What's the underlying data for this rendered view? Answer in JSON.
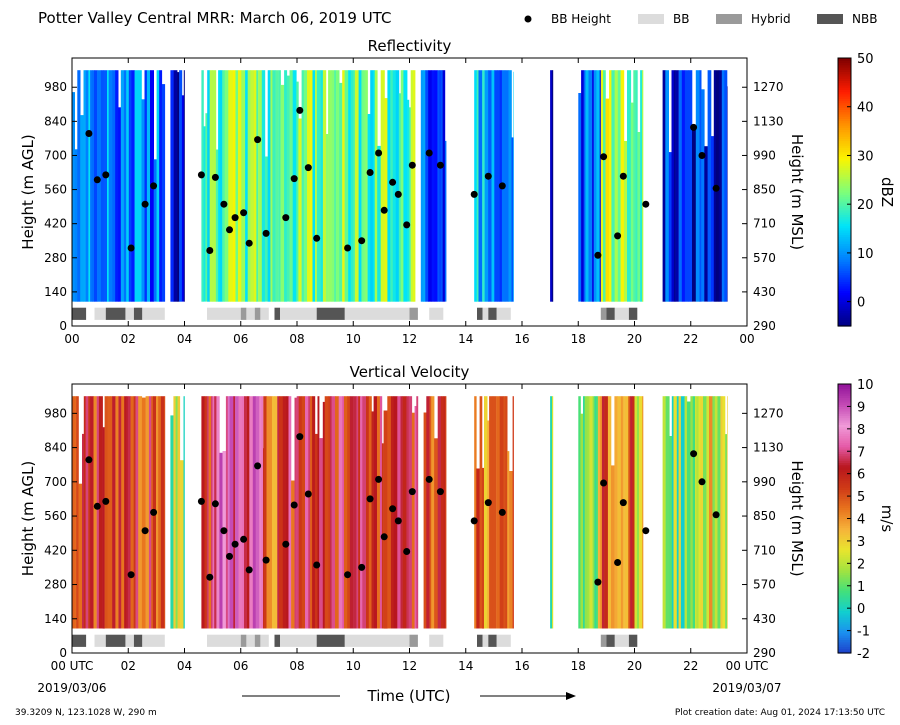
{
  "header": {
    "title": "Potter Valley Central MRR:  March 06, 2019 UTC",
    "legend": [
      {
        "label": "BB Height",
        "swatch": "dot",
        "color": "#000000"
      },
      {
        "label": "BB",
        "swatch": "box",
        "color": "#dcdcdc"
      },
      {
        "label": "Hybrid",
        "swatch": "box",
        "color": "#9a9a9a"
      },
      {
        "label": "NBB",
        "swatch": "box",
        "color": "#555555"
      }
    ]
  },
  "footer": {
    "location": "39.3209 N, 123.1028 W, 290 m",
    "creation": "Plot creation date: Aug 01, 2024 17:13:50 UTC",
    "xlabel": "Time (UTC)",
    "start_date": "2019/03/06",
    "end_date": "2019/03/07"
  },
  "chart_data": [
    {
      "type": "heatmap",
      "title": "Reflectivity",
      "ylabel": "Height (m AGL)",
      "ylabel_right": "Height (m MSL)",
      "colorbar": {
        "label": "dBZ",
        "range": [
          -5,
          50
        ],
        "ticks": [
          0,
          10,
          20,
          30,
          40,
          50
        ],
        "colors": [
          "#00007f",
          "#0000ff",
          "#0080ff",
          "#00e4f8",
          "#7dff7a",
          "#faf500",
          "#ff9400",
          "#ff1d00",
          "#7f0000"
        ]
      },
      "x_ticks": [
        "00",
        "02",
        "04",
        "06",
        "08",
        "10",
        "12",
        "14",
        "16",
        "18",
        "20",
        "22",
        "00"
      ],
      "xlim": [
        0,
        24
      ],
      "ylim": [
        0,
        1100
      ],
      "y_ticks": [
        0,
        140,
        280,
        420,
        560,
        700,
        840,
        980
      ],
      "y_ticks_right": [
        290,
        430,
        570,
        710,
        850,
        990,
        1130,
        1270
      ],
      "segments": [
        {
          "start": 0.0,
          "end": 3.3,
          "level": 9
        },
        {
          "start": 3.5,
          "end": 4.0,
          "level": 1
        },
        {
          "start": 4.6,
          "end": 12.2,
          "level": 22
        },
        {
          "start": 12.4,
          "end": 13.3,
          "level": 7
        },
        {
          "start": 14.3,
          "end": 15.7,
          "level": 12
        },
        {
          "start": 17.0,
          "end": 17.1,
          "level": 2
        },
        {
          "start": 18.0,
          "end": 18.8,
          "level": 6
        },
        {
          "start": 18.8,
          "end": 20.3,
          "level": 24
        },
        {
          "start": 21.0,
          "end": 21.4,
          "level": 3
        },
        {
          "start": 21.4,
          "end": 23.3,
          "level": 2
        }
      ],
      "bb_height": [
        {
          "x": 0.6,
          "y": 790
        },
        {
          "x": 0.9,
          "y": 600
        },
        {
          "x": 1.2,
          "y": 620
        },
        {
          "x": 2.1,
          "y": 320
        },
        {
          "x": 2.6,
          "y": 500
        },
        {
          "x": 2.9,
          "y": 575
        },
        {
          "x": 4.6,
          "y": 620
        },
        {
          "x": 4.9,
          "y": 310
        },
        {
          "x": 5.1,
          "y": 610
        },
        {
          "x": 5.4,
          "y": 500
        },
        {
          "x": 5.6,
          "y": 395
        },
        {
          "x": 5.8,
          "y": 445
        },
        {
          "x": 6.1,
          "y": 465
        },
        {
          "x": 6.3,
          "y": 340
        },
        {
          "x": 6.6,
          "y": 765
        },
        {
          "x": 6.9,
          "y": 380
        },
        {
          "x": 7.6,
          "y": 445
        },
        {
          "x": 7.9,
          "y": 605
        },
        {
          "x": 8.1,
          "y": 885
        },
        {
          "x": 8.4,
          "y": 650
        },
        {
          "x": 8.7,
          "y": 360
        },
        {
          "x": 9.8,
          "y": 320
        },
        {
          "x": 10.3,
          "y": 350
        },
        {
          "x": 10.6,
          "y": 630
        },
        {
          "x": 10.9,
          "y": 710
        },
        {
          "x": 11.1,
          "y": 475
        },
        {
          "x": 11.4,
          "y": 590
        },
        {
          "x": 11.6,
          "y": 540
        },
        {
          "x": 11.9,
          "y": 415
        },
        {
          "x": 12.1,
          "y": 660
        },
        {
          "x": 12.7,
          "y": 710
        },
        {
          "x": 13.1,
          "y": 660
        },
        {
          "x": 14.3,
          "y": 540
        },
        {
          "x": 14.8,
          "y": 615
        },
        {
          "x": 15.3,
          "y": 575
        },
        {
          "x": 18.7,
          "y": 290
        },
        {
          "x": 18.9,
          "y": 695
        },
        {
          "x": 19.4,
          "y": 370
        },
        {
          "x": 19.6,
          "y": 615
        },
        {
          "x": 20.4,
          "y": 500
        },
        {
          "x": 22.1,
          "y": 815
        },
        {
          "x": 22.4,
          "y": 700
        },
        {
          "x": 22.9,
          "y": 565
        }
      ],
      "bb_class": [
        {
          "start": 0.0,
          "end": 0.5,
          "class": "NBB"
        },
        {
          "start": 0.8,
          "end": 1.2,
          "class": "BB"
        },
        {
          "start": 1.2,
          "end": 1.9,
          "class": "NBB"
        },
        {
          "start": 1.9,
          "end": 2.2,
          "class": "BB"
        },
        {
          "start": 2.2,
          "end": 2.5,
          "class": "NBB"
        },
        {
          "start": 2.5,
          "end": 3.3,
          "class": "BB"
        },
        {
          "start": 4.8,
          "end": 6.0,
          "class": "BB"
        },
        {
          "start": 6.0,
          "end": 6.2,
          "class": "Hybrid"
        },
        {
          "start": 6.2,
          "end": 6.5,
          "class": "BB"
        },
        {
          "start": 6.5,
          "end": 6.7,
          "class": "Hybrid"
        },
        {
          "start": 6.7,
          "end": 7.0,
          "class": "BB"
        },
        {
          "start": 7.2,
          "end": 7.4,
          "class": "NBB"
        },
        {
          "start": 7.4,
          "end": 8.7,
          "class": "BB"
        },
        {
          "start": 8.7,
          "end": 9.7,
          "class": "NBB"
        },
        {
          "start": 9.7,
          "end": 12.0,
          "class": "BB"
        },
        {
          "start": 12.0,
          "end": 12.3,
          "class": "Hybrid"
        },
        {
          "start": 12.7,
          "end": 13.2,
          "class": "BB"
        },
        {
          "start": 14.4,
          "end": 14.6,
          "class": "NBB"
        },
        {
          "start": 14.6,
          "end": 14.8,
          "class": "BB"
        },
        {
          "start": 14.8,
          "end": 15.1,
          "class": "NBB"
        },
        {
          "start": 15.1,
          "end": 15.6,
          "class": "BB"
        },
        {
          "start": 18.8,
          "end": 19.0,
          "class": "Hybrid"
        },
        {
          "start": 19.0,
          "end": 19.3,
          "class": "NBB"
        },
        {
          "start": 19.3,
          "end": 19.8,
          "class": "BB"
        },
        {
          "start": 19.8,
          "end": 20.1,
          "class": "NBB"
        }
      ]
    },
    {
      "type": "heatmap",
      "title": "Vertical Velocity",
      "ylabel": "Height (m AGL)",
      "ylabel_right": "Height (m MSL)",
      "colorbar": {
        "label": "m/s",
        "range": [
          -2,
          10
        ],
        "ticks": [
          -2,
          -1,
          0,
          1,
          2,
          3,
          4,
          5,
          6,
          7,
          8,
          9,
          10
        ],
        "colors": [
          "#1c3ec9",
          "#1b8ff0",
          "#11cfcf",
          "#42e07b",
          "#a2e340",
          "#e8e52e",
          "#f6b33a",
          "#e8731e",
          "#cf3a17",
          "#b8161d",
          "#e55ba8",
          "#f09ad8",
          "#c54bb6",
          "#92149a"
        ]
      },
      "x_ticks": [
        "00 UTC",
        "02",
        "04",
        "06",
        "08",
        "10",
        "12",
        "14",
        "16",
        "18",
        "20",
        "22",
        "00 UTC"
      ],
      "xlim": [
        0,
        24
      ],
      "ylim": [
        0,
        1100
      ],
      "y_ticks": [
        0,
        140,
        280,
        420,
        560,
        700,
        840,
        980
      ],
      "y_ticks_right": [
        290,
        430,
        570,
        710,
        850,
        990,
        1130,
        1270
      ],
      "segments": [
        {
          "start": 0.0,
          "end": 3.3,
          "level": 5.5
        },
        {
          "start": 3.5,
          "end": 4.0,
          "level": 1.5
        },
        {
          "start": 4.6,
          "end": 5.0,
          "level": 5.5
        },
        {
          "start": 5.0,
          "end": 6.8,
          "level": 7.8
        },
        {
          "start": 6.8,
          "end": 7.3,
          "level": 5
        },
        {
          "start": 7.3,
          "end": 12.3,
          "level": 6
        },
        {
          "start": 12.5,
          "end": 13.3,
          "level": 5
        },
        {
          "start": 14.3,
          "end": 15.7,
          "level": 4.5
        },
        {
          "start": 17.0,
          "end": 17.1,
          "level": 1
        },
        {
          "start": 18.0,
          "end": 18.7,
          "level": 2
        },
        {
          "start": 18.7,
          "end": 20.0,
          "level": 5
        },
        {
          "start": 20.0,
          "end": 20.3,
          "level": 3
        },
        {
          "start": 21.0,
          "end": 22.2,
          "level": 1.5
        },
        {
          "start": 22.2,
          "end": 23.3,
          "level": 2.5
        }
      ],
      "bb_height": [
        {
          "x": 0.6,
          "y": 790
        },
        {
          "x": 0.9,
          "y": 600
        },
        {
          "x": 1.2,
          "y": 620
        },
        {
          "x": 2.1,
          "y": 320
        },
        {
          "x": 2.6,
          "y": 500
        },
        {
          "x": 2.9,
          "y": 575
        },
        {
          "x": 4.6,
          "y": 620
        },
        {
          "x": 4.9,
          "y": 310
        },
        {
          "x": 5.1,
          "y": 610
        },
        {
          "x": 5.4,
          "y": 500
        },
        {
          "x": 5.6,
          "y": 395
        },
        {
          "x": 5.8,
          "y": 445
        },
        {
          "x": 6.1,
          "y": 465
        },
        {
          "x": 6.3,
          "y": 340
        },
        {
          "x": 6.6,
          "y": 765
        },
        {
          "x": 6.9,
          "y": 380
        },
        {
          "x": 7.6,
          "y": 445
        },
        {
          "x": 7.9,
          "y": 605
        },
        {
          "x": 8.1,
          "y": 885
        },
        {
          "x": 8.4,
          "y": 650
        },
        {
          "x": 8.7,
          "y": 360
        },
        {
          "x": 9.8,
          "y": 320
        },
        {
          "x": 10.3,
          "y": 350
        },
        {
          "x": 10.6,
          "y": 630
        },
        {
          "x": 10.9,
          "y": 710
        },
        {
          "x": 11.1,
          "y": 475
        },
        {
          "x": 11.4,
          "y": 590
        },
        {
          "x": 11.6,
          "y": 540
        },
        {
          "x": 11.9,
          "y": 415
        },
        {
          "x": 12.1,
          "y": 660
        },
        {
          "x": 12.7,
          "y": 710
        },
        {
          "x": 13.1,
          "y": 660
        },
        {
          "x": 14.3,
          "y": 540
        },
        {
          "x": 14.8,
          "y": 615
        },
        {
          "x": 15.3,
          "y": 575
        },
        {
          "x": 18.7,
          "y": 290
        },
        {
          "x": 18.9,
          "y": 695
        },
        {
          "x": 19.4,
          "y": 370
        },
        {
          "x": 19.6,
          "y": 615
        },
        {
          "x": 20.4,
          "y": 500
        },
        {
          "x": 22.1,
          "y": 815
        },
        {
          "x": 22.4,
          "y": 700
        },
        {
          "x": 22.9,
          "y": 565
        }
      ],
      "bb_class": [
        {
          "start": 0.0,
          "end": 0.5,
          "class": "NBB"
        },
        {
          "start": 0.8,
          "end": 1.2,
          "class": "BB"
        },
        {
          "start": 1.2,
          "end": 1.9,
          "class": "NBB"
        },
        {
          "start": 1.9,
          "end": 2.2,
          "class": "BB"
        },
        {
          "start": 2.2,
          "end": 2.5,
          "class": "NBB"
        },
        {
          "start": 2.5,
          "end": 3.3,
          "class": "BB"
        },
        {
          "start": 4.8,
          "end": 6.0,
          "class": "BB"
        },
        {
          "start": 6.0,
          "end": 6.2,
          "class": "Hybrid"
        },
        {
          "start": 6.2,
          "end": 6.5,
          "class": "BB"
        },
        {
          "start": 6.5,
          "end": 6.7,
          "class": "Hybrid"
        },
        {
          "start": 6.7,
          "end": 7.0,
          "class": "BB"
        },
        {
          "start": 7.2,
          "end": 7.4,
          "class": "NBB"
        },
        {
          "start": 7.4,
          "end": 8.7,
          "class": "BB"
        },
        {
          "start": 8.7,
          "end": 9.7,
          "class": "NBB"
        },
        {
          "start": 9.7,
          "end": 12.0,
          "class": "BB"
        },
        {
          "start": 12.0,
          "end": 12.3,
          "class": "Hybrid"
        },
        {
          "start": 12.7,
          "end": 13.2,
          "class": "BB"
        },
        {
          "start": 14.4,
          "end": 14.6,
          "class": "NBB"
        },
        {
          "start": 14.6,
          "end": 14.8,
          "class": "BB"
        },
        {
          "start": 14.8,
          "end": 15.1,
          "class": "NBB"
        },
        {
          "start": 15.1,
          "end": 15.6,
          "class": "BB"
        },
        {
          "start": 18.8,
          "end": 19.0,
          "class": "Hybrid"
        },
        {
          "start": 19.0,
          "end": 19.3,
          "class": "NBB"
        },
        {
          "start": 19.3,
          "end": 19.8,
          "class": "BB"
        },
        {
          "start": 19.8,
          "end": 20.1,
          "class": "NBB"
        }
      ]
    }
  ]
}
